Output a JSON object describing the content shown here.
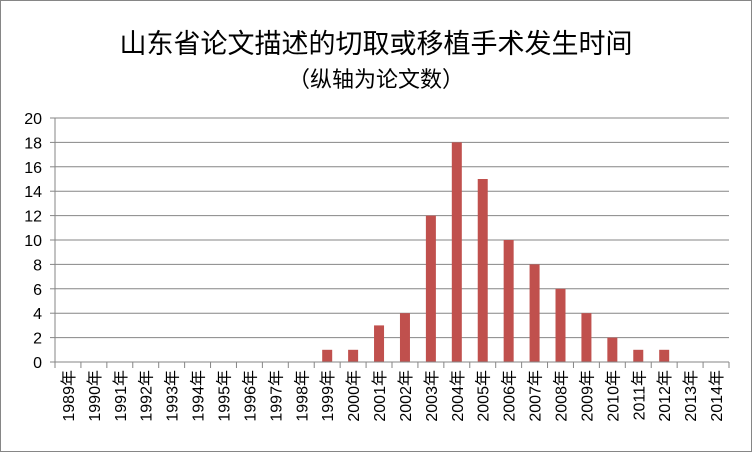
{
  "chart_data": {
    "type": "bar",
    "title": "山东省论文描述的切取或移植手术发生时间",
    "subtitle": "（纵轴为论文数）",
    "xlabel": "",
    "ylabel": "",
    "ylim": [
      0,
      20
    ],
    "yticks": [
      0,
      2,
      4,
      6,
      8,
      10,
      12,
      14,
      16,
      18,
      20
    ],
    "grid": true,
    "legend": "none",
    "bar_color": "#C0504D",
    "grid_color": "#868686",
    "categories": [
      "1989年",
      "1990年",
      "1991年",
      "1992年",
      "1993年",
      "1994年",
      "1995年",
      "1996年",
      "1997年",
      "1998年",
      "1999年",
      "2000年",
      "2001年",
      "2002年",
      "2003年",
      "2004年",
      "2005年",
      "2006年",
      "2007年",
      "2008年",
      "2009年",
      "2010年",
      "2011年",
      "2012年",
      "2013年",
      "2014年"
    ],
    "values": [
      0,
      0,
      0,
      0,
      0,
      0,
      0,
      0,
      0,
      0,
      1,
      1,
      3,
      4,
      12,
      18,
      15,
      10,
      8,
      6,
      4,
      2,
      1,
      1,
      0,
      0
    ]
  }
}
